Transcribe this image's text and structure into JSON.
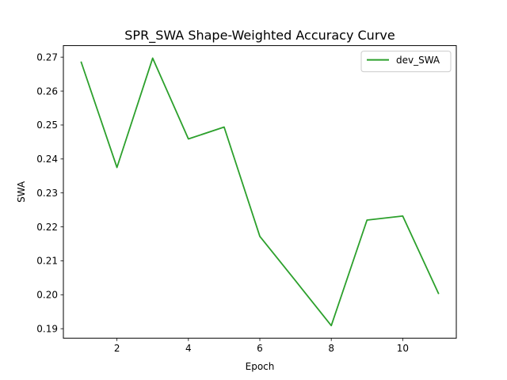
{
  "chart_data": {
    "type": "line",
    "title": "SPR_SWA Shape-Weighted Accuracy Curve",
    "xlabel": "Epoch",
    "ylabel": "SWA",
    "xlim": [
      0.5,
      11.5
    ],
    "ylim": [
      0.1872,
      0.2734
    ],
    "xticks": [
      2,
      4,
      6,
      8,
      10
    ],
    "yticks": [
      0.19,
      0.2,
      0.21,
      0.22,
      0.23,
      0.24,
      0.25,
      0.26,
      0.27
    ],
    "ytick_labels": [
      "0.19",
      "0.20",
      "0.21",
      "0.22",
      "0.23",
      "0.24",
      "0.25",
      "0.26",
      "0.27"
    ],
    "grid": false,
    "legend_position": "top-right",
    "series": [
      {
        "name": "dev_SWA",
        "color": "#2ca02c",
        "x": [
          1,
          2,
          3,
          4,
          5,
          6,
          7,
          8,
          9,
          10,
          11
        ],
        "values": [
          0.2685,
          0.2375,
          0.2697,
          0.2459,
          0.2494,
          0.2172,
          0.2041,
          0.1909,
          0.222,
          0.2232,
          0.2004
        ]
      }
    ]
  }
}
